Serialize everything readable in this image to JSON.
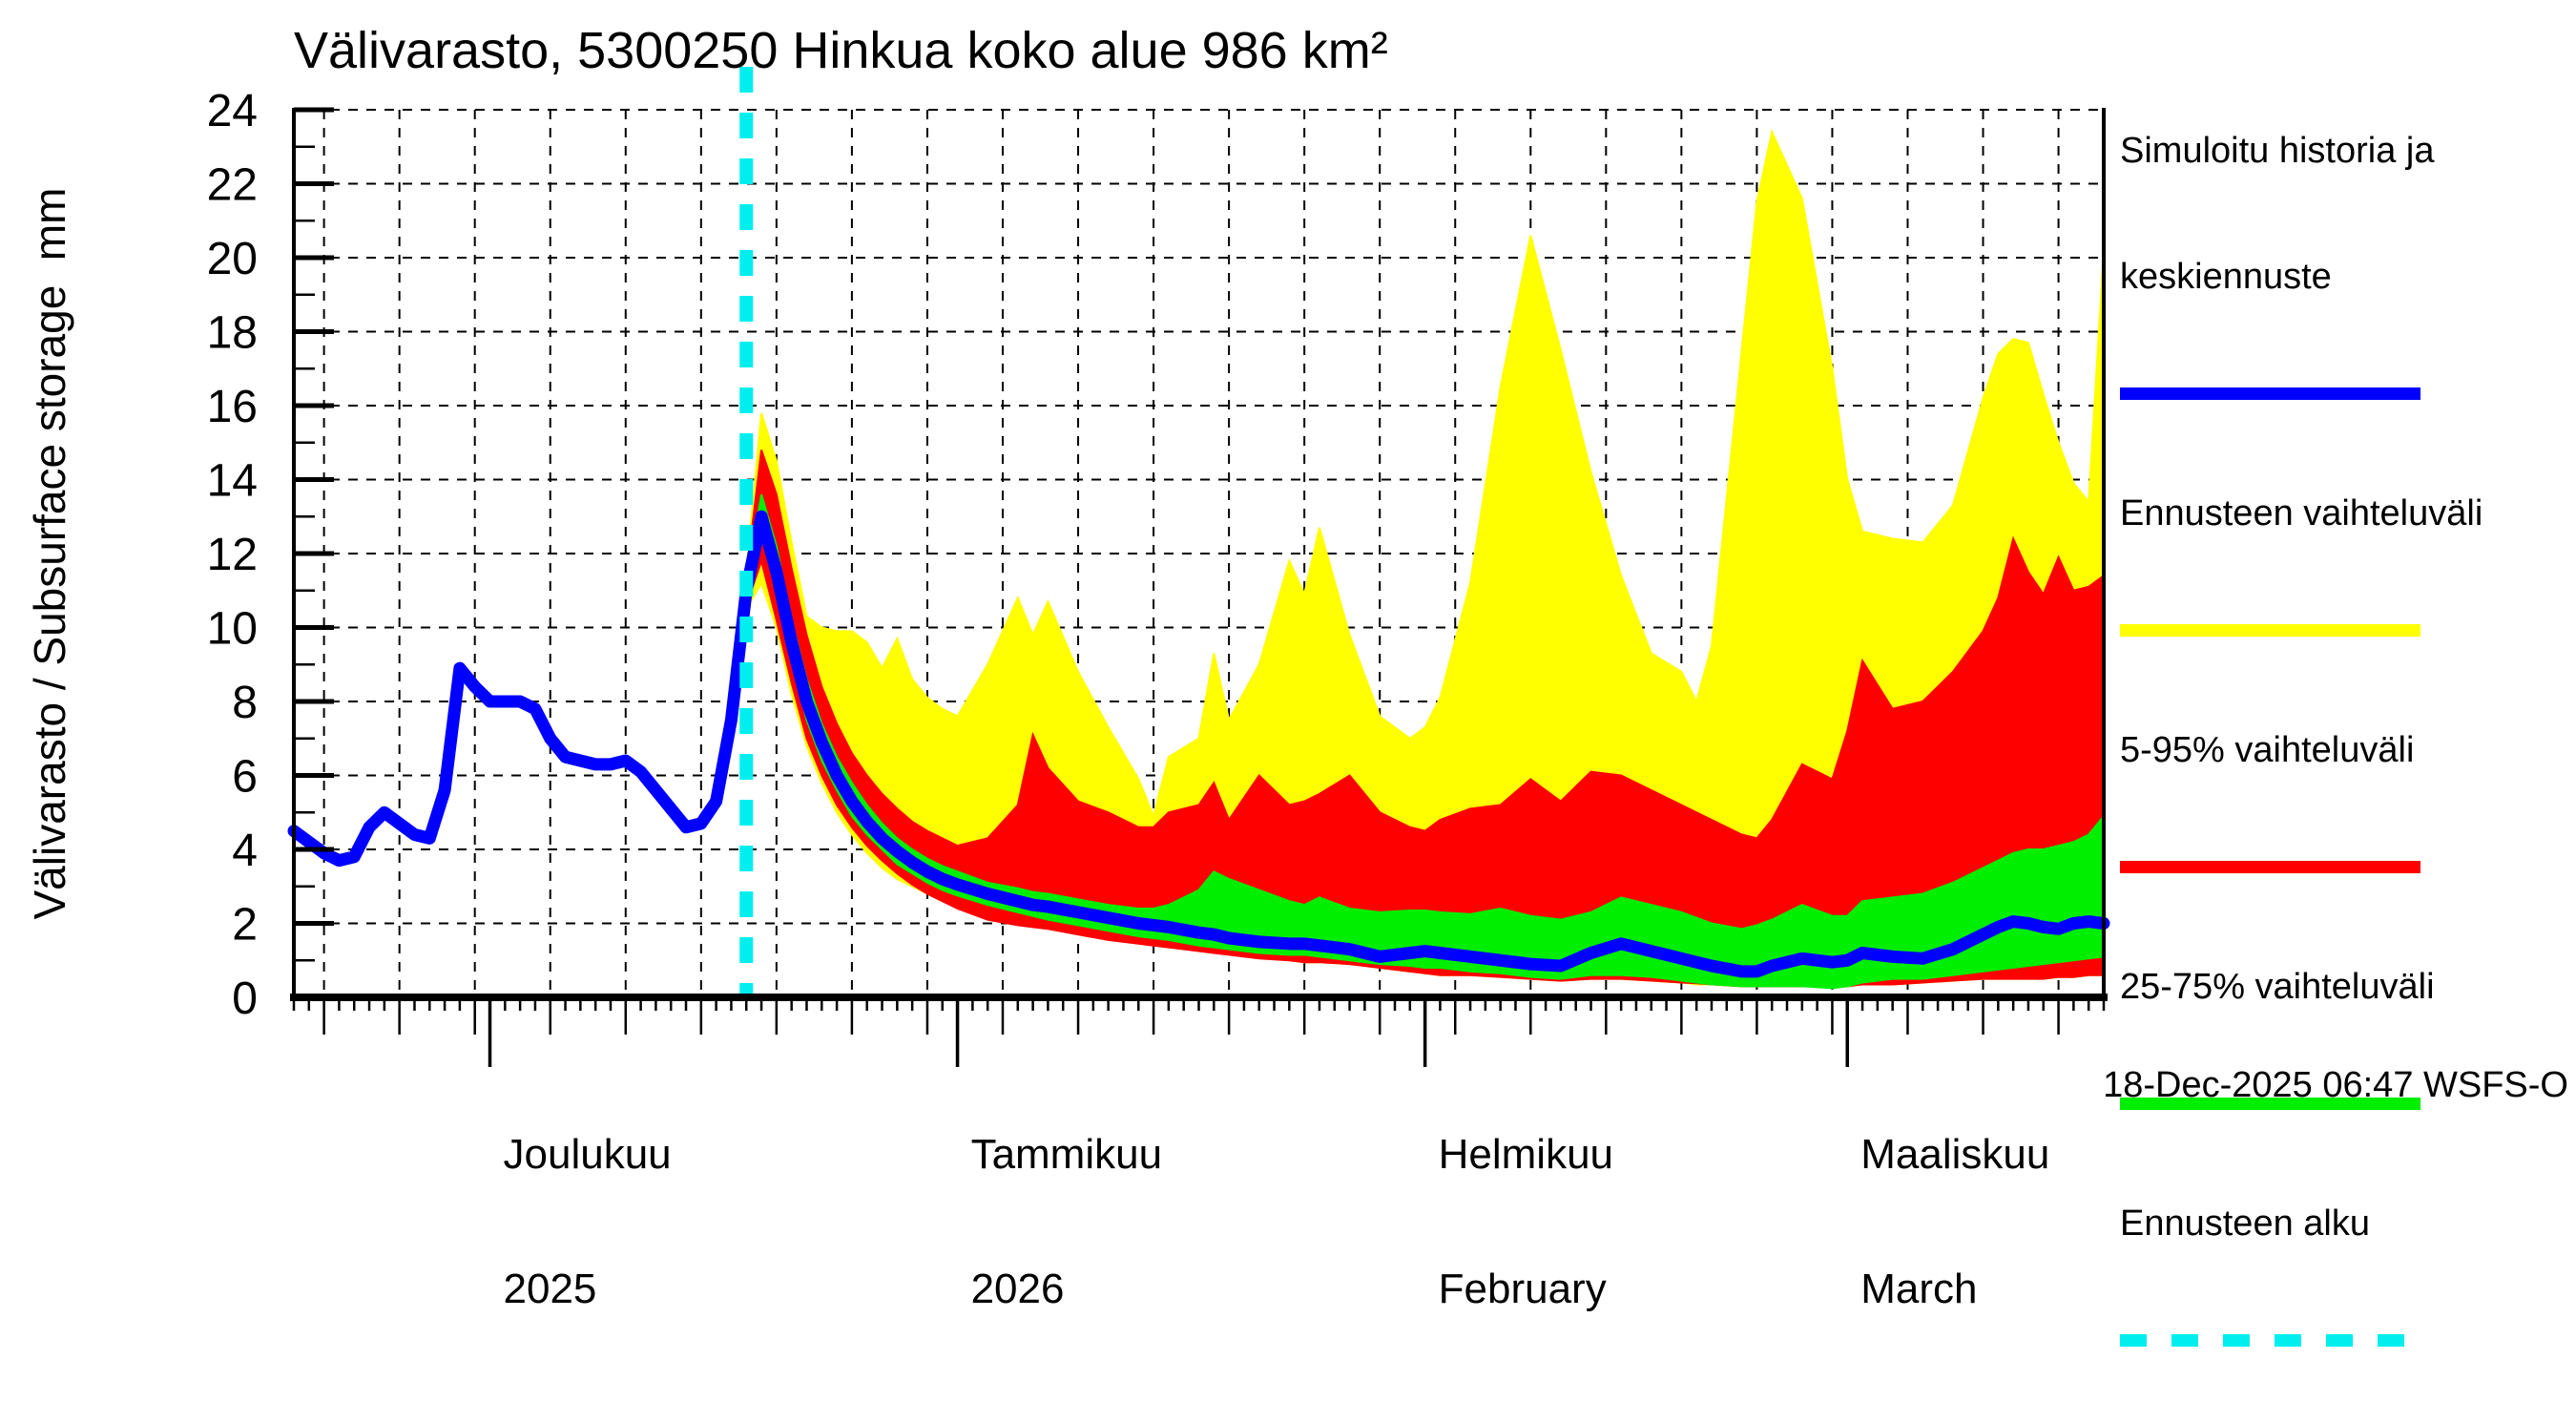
{
  "title": "Välivarasto, 5300250 Hinkua koko alue 986 km²",
  "footer": {
    "timestamp": "18-Dec-2025 06:47 WSFS-O"
  },
  "colors": {
    "background": "#ffffff",
    "history_median_line": "#0000ff",
    "forecast_range_band": "#ffff00",
    "band_5_95": "#ff0000",
    "band_25_75": "#00ee00",
    "forecast_start_line": "#00eeee",
    "grid_and_axes": "#000000"
  },
  "y_axis": {
    "label": "Välivarasto / Subsurface storage  mm",
    "min": 0,
    "max": 24,
    "tick_step": 2,
    "minor_tick_step": 1,
    "tick_labels": [
      "0",
      "2",
      "4",
      "6",
      "8",
      "10",
      "12",
      "14",
      "16",
      "18",
      "20",
      "22",
      "24"
    ]
  },
  "x_axis": {
    "start_date": "18-Nov-2025",
    "end_date": "18-Mar-2026",
    "grid_interval_days": 5,
    "month_ticks": [
      {
        "day": 13,
        "label": "Joulukuu",
        "sublabel": "2025"
      },
      {
        "day": 44,
        "label": "Tammikuu",
        "sublabel": "2026"
      },
      {
        "day": 75,
        "label": "Helmikuu",
        "sublabel": "February"
      },
      {
        "day": 103,
        "label": "Maaliskuu",
        "sublabel": "March"
      }
    ]
  },
  "legend": {
    "items": [
      {
        "name": "simulated-history-and-median-forecast",
        "line1": "Simuloitu historia ja",
        "line2": "keskiennuste",
        "color": "#0000ff",
        "style": "solid"
      },
      {
        "name": "forecast-range",
        "line1": "Ennusteen vaihteluväli",
        "line2": "",
        "color": "#ffff00",
        "style": "solid"
      },
      {
        "name": "range-5-95",
        "line1": "5-95% vaihteluväli",
        "line2": "",
        "color": "#ff0000",
        "style": "solid"
      },
      {
        "name": "range-25-75",
        "line1": "25-75% vaihteluväli",
        "line2": "",
        "color": "#00ee00",
        "style": "solid"
      },
      {
        "name": "forecast-start",
        "line1": "Ennusteen alku",
        "line2": "",
        "color": "#00eeee",
        "style": "dashed"
      }
    ]
  },
  "chart_data": {
    "type": "area",
    "title": "Välivarasto, 5300250 Hinkua koko alue 986 km²",
    "ylabel": "Välivarasto / Subsurface storage mm",
    "ylim": [
      0,
      24
    ],
    "x_unit": "days since 18-Nov-2025",
    "forecast_start_day": 30,
    "forecast_start_date": "18-Dec-2025",
    "grid": "dashed, 2 mm horizontal interval, 5 day vertical interval",
    "legend_position": "outside top-right",
    "history": {
      "name": "Simuloitu historia (blue line)",
      "days": [
        0,
        1,
        2,
        3,
        4,
        5,
        6,
        7,
        8,
        9,
        10,
        11,
        12,
        13,
        14,
        15,
        16,
        17,
        18,
        19,
        20,
        21,
        22,
        23,
        24,
        25,
        26,
        27,
        28,
        29,
        30,
        31
      ],
      "values": [
        4.5,
        4.2,
        3.9,
        3.7,
        3.8,
        4.6,
        5.0,
        4.7,
        4.4,
        4.3,
        5.6,
        8.9,
        8.4,
        8.0,
        8.0,
        8.0,
        7.8,
        7.0,
        6.5,
        6.4,
        6.3,
        6.3,
        6.4,
        6.1,
        5.6,
        5.1,
        4.6,
        4.7,
        5.3,
        7.5,
        11.0,
        13.0
      ]
    },
    "forecast": {
      "days": [
        30,
        31,
        32,
        33,
        34,
        35,
        36,
        37,
        38,
        39,
        40,
        41,
        42,
        43,
        44,
        46,
        48,
        49,
        50,
        52,
        54,
        56,
        57,
        58,
        60,
        61,
        62,
        64,
        66,
        67,
        68,
        70,
        72,
        74,
        75,
        76,
        78,
        80,
        82,
        84,
        86,
        88,
        90,
        92,
        93,
        94,
        96,
        97,
        98,
        100,
        102,
        103,
        104,
        106,
        108,
        110,
        112,
        113,
        114,
        115,
        116,
        117,
        118,
        119,
        120
      ],
      "median": [
        11.0,
        13.0,
        11.5,
        9.6,
        8.0,
        6.9,
        6.0,
        5.3,
        4.75,
        4.3,
        3.95,
        3.65,
        3.4,
        3.2,
        3.05,
        2.8,
        2.6,
        2.5,
        2.45,
        2.3,
        2.15,
        2.0,
        1.95,
        1.9,
        1.75,
        1.7,
        1.6,
        1.5,
        1.45,
        1.45,
        1.4,
        1.3,
        1.1,
        1.2,
        1.25,
        1.2,
        1.1,
        1.0,
        0.9,
        0.85,
        1.2,
        1.45,
        1.25,
        1.05,
        0.95,
        0.85,
        0.7,
        0.7,
        0.85,
        1.05,
        0.95,
        1.0,
        1.2,
        1.1,
        1.05,
        1.3,
        1.7,
        1.9,
        2.05,
        2.0,
        1.9,
        1.85,
        2.0,
        2.05,
        2.0
      ],
      "p25": [
        10.8,
        12.5,
        11.0,
        9.1,
        7.5,
        6.4,
        5.6,
        4.9,
        4.4,
        4.0,
        3.6,
        3.35,
        3.1,
        2.9,
        2.75,
        2.5,
        2.3,
        2.2,
        2.1,
        1.95,
        1.8,
        1.65,
        1.6,
        1.55,
        1.4,
        1.35,
        1.3,
        1.2,
        1.15,
        1.15,
        1.1,
        1.0,
        0.9,
        0.85,
        0.8,
        0.8,
        0.7,
        0.65,
        0.55,
        0.5,
        0.6,
        0.6,
        0.55,
        0.45,
        0.4,
        0.35,
        0.3,
        0.3,
        0.3,
        0.3,
        0.25,
        0.3,
        0.4,
        0.5,
        0.5,
        0.6,
        0.7,
        0.75,
        0.8,
        0.85,
        0.9,
        0.95,
        1.0,
        1.05,
        1.1
      ],
      "p75": [
        11.2,
        13.6,
        12.2,
        10.2,
        8.6,
        7.4,
        6.5,
        5.8,
        5.2,
        4.7,
        4.3,
        4.0,
        3.75,
        3.55,
        3.4,
        3.1,
        2.95,
        2.85,
        2.8,
        2.65,
        2.5,
        2.4,
        2.4,
        2.5,
        2.9,
        3.4,
        3.2,
        2.9,
        2.6,
        2.5,
        2.7,
        2.4,
        2.3,
        2.35,
        2.35,
        2.3,
        2.25,
        2.4,
        2.2,
        2.1,
        2.3,
        2.7,
        2.5,
        2.3,
        2.15,
        2.0,
        1.85,
        1.95,
        2.1,
        2.5,
        2.2,
        2.2,
        2.6,
        2.7,
        2.8,
        3.1,
        3.5,
        3.7,
        3.9,
        4.0,
        4.0,
        4.1,
        4.2,
        4.4,
        4.9
      ],
      "p5": [
        10.6,
        11.8,
        10.2,
        8.5,
        7.0,
        6.0,
        5.2,
        4.6,
        4.1,
        3.7,
        3.35,
        3.05,
        2.8,
        2.6,
        2.4,
        2.1,
        1.95,
        1.9,
        1.85,
        1.7,
        1.55,
        1.45,
        1.4,
        1.35,
        1.25,
        1.2,
        1.15,
        1.05,
        1.0,
        0.95,
        0.95,
        0.9,
        0.8,
        0.7,
        0.65,
        0.6,
        0.6,
        0.55,
        0.5,
        0.45,
        0.5,
        0.5,
        0.45,
        0.4,
        0.38,
        0.35,
        0.3,
        0.3,
        0.3,
        0.3,
        0.3,
        0.3,
        0.35,
        0.35,
        0.4,
        0.45,
        0.5,
        0.5,
        0.5,
        0.5,
        0.5,
        0.55,
        0.55,
        0.6,
        0.6
      ],
      "p95": [
        11.4,
        14.8,
        13.6,
        11.6,
        9.8,
        8.4,
        7.4,
        6.6,
        6.0,
        5.5,
        5.1,
        4.75,
        4.5,
        4.3,
        4.1,
        4.3,
        5.2,
        7.1,
        6.2,
        5.3,
        5.0,
        4.6,
        4.6,
        5.0,
        5.2,
        5.8,
        4.8,
        6.0,
        5.2,
        5.3,
        5.5,
        6.0,
        5.0,
        4.6,
        4.5,
        4.8,
        5.1,
        5.2,
        5.9,
        5.3,
        6.1,
        6.0,
        5.6,
        5.2,
        5.0,
        4.8,
        4.4,
        4.3,
        4.8,
        6.3,
        5.9,
        7.2,
        9.1,
        7.8,
        8.0,
        8.8,
        9.9,
        10.8,
        12.4,
        11.5,
        10.9,
        11.9,
        11.0,
        11.1,
        11.4
      ],
      "min": [
        10.5,
        11.2,
        10.0,
        8.2,
        6.8,
        5.8,
        5.0,
        4.4,
        3.9,
        3.5,
        3.2,
        3.0,
        2.8,
        2.6,
        2.45,
        2.2,
        2.0,
        1.95,
        1.9,
        1.8,
        1.6,
        1.5,
        1.45,
        1.4,
        1.3,
        1.25,
        1.2,
        1.1,
        1.0,
        0.95,
        0.95,
        0.9,
        0.8,
        0.7,
        0.65,
        0.6,
        0.6,
        0.55,
        0.5,
        0.45,
        0.5,
        0.5,
        0.45,
        0.4,
        0.35,
        0.35,
        0.3,
        0.3,
        0.3,
        0.3,
        0.3,
        0.3,
        0.35,
        0.35,
        0.4,
        0.45,
        0.5,
        0.5,
        0.5,
        0.5,
        0.5,
        0.55,
        0.55,
        0.6,
        0.6
      ],
      "max": [
        11.5,
        15.8,
        14.5,
        12.3,
        10.3,
        10.0,
        9.9,
        9.9,
        9.6,
        8.9,
        9.7,
        8.6,
        8.1,
        7.8,
        7.6,
        9.0,
        10.8,
        9.8,
        10.7,
        8.8,
        7.3,
        5.9,
        4.9,
        6.5,
        7.0,
        9.3,
        7.5,
        9.0,
        11.8,
        10.9,
        12.7,
        9.8,
        7.6,
        7.0,
        7.3,
        8.1,
        11.2,
        16.5,
        20.6,
        17.5,
        14.2,
        11.4,
        9.3,
        8.8,
        8.0,
        9.5,
        17.5,
        21.5,
        23.4,
        21.6,
        17.0,
        14.0,
        12.6,
        12.4,
        12.3,
        13.3,
        16.2,
        17.4,
        17.8,
        17.7,
        16.3,
        15.0,
        13.9,
        13.4,
        20.2
      ]
    }
  }
}
